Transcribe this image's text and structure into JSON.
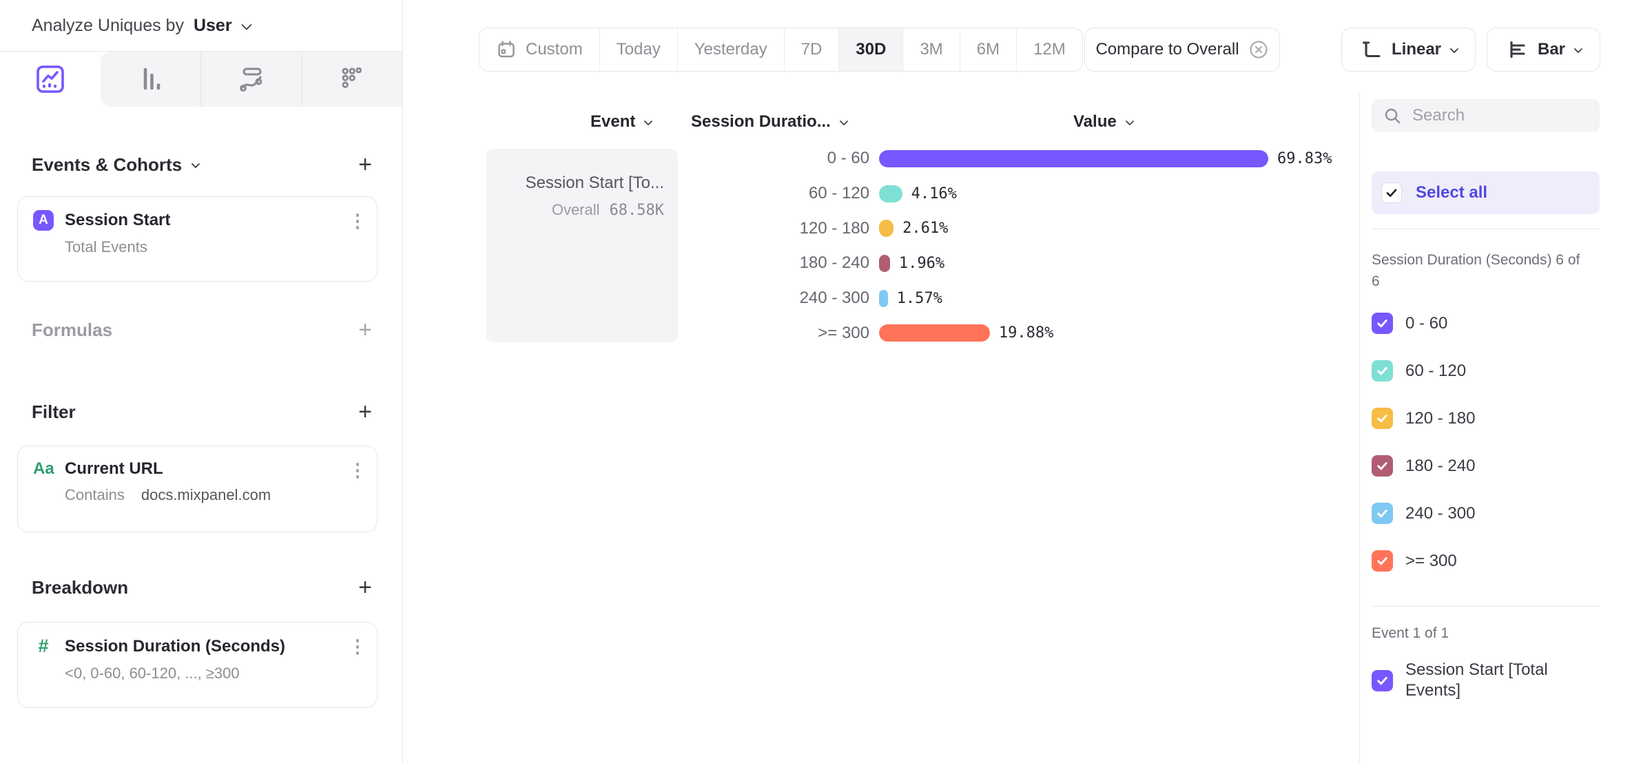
{
  "header": {
    "title_label": "Analyze Uniques by",
    "title_value": "User"
  },
  "chart_tabs": [
    {
      "name": "insights",
      "active": true
    },
    {
      "name": "bar-chart",
      "active": false
    },
    {
      "name": "flows",
      "active": false
    },
    {
      "name": "retention",
      "active": false
    }
  ],
  "builder": {
    "events_section": {
      "title": "Events & Cohorts",
      "card": {
        "badge": "A",
        "title": "Session Start",
        "subtitle": "Total Events"
      }
    },
    "formulas_section": {
      "title": "Formulas"
    },
    "filter_section": {
      "title": "Filter",
      "card": {
        "icon": "Aa",
        "title": "Current URL",
        "operator": "Contains",
        "value": "docs.mixpanel.com"
      }
    },
    "breakdown_section": {
      "title": "Breakdown",
      "card": {
        "icon": "#",
        "title": "Session Duration (Seconds)",
        "subtitle": "<0, 0-60, 60-120, ..., ≥300"
      }
    }
  },
  "toolbar": {
    "date_ranges": [
      "Custom",
      "Today",
      "Yesterday",
      "7D",
      "30D",
      "3M",
      "6M",
      "12M"
    ],
    "active_range": "30D",
    "compare_label": "Compare to Overall",
    "scale_label": "Linear",
    "chart_type_label": "Bar"
  },
  "table": {
    "columns": [
      "Event",
      "Session Duratio...",
      "Value"
    ]
  },
  "series_card": {
    "title": "Session Start [To...",
    "overall_label": "Overall",
    "overall_value": "68.58K"
  },
  "chart_data": {
    "type": "bar",
    "orientation": "horizontal",
    "series_name": "Session Start [Total Events]",
    "overall_label": "Overall",
    "overall_value": "68.58K",
    "categories": [
      "0 - 60",
      "60 - 120",
      "120 - 180",
      "180 - 240",
      "240 - 300",
      ">= 300"
    ],
    "values": [
      69.83,
      4.16,
      2.61,
      1.96,
      1.57,
      19.88
    ],
    "value_labels": [
      "69.83%",
      "4.16%",
      "2.61%",
      "1.96%",
      "1.57%",
      "19.88%"
    ],
    "colors": [
      "#7857FF",
      "#7EE0D4",
      "#F6BC45",
      "#B05D73",
      "#7EC9F4",
      "#FF7459"
    ],
    "unit": "%",
    "xlabel": "Value",
    "legend_position": "right-panel"
  },
  "sidebar": {
    "search_placeholder": "Search",
    "select_all_label": "Select all",
    "group_label": "Session Duration (Seconds) 6 of 6",
    "items": [
      {
        "label": "0 - 60",
        "color": "#7857FF",
        "checked": true
      },
      {
        "label": "60 - 120",
        "color": "#7EE0D4",
        "checked": true
      },
      {
        "label": "120 - 180",
        "color": "#F6BC45",
        "checked": true
      },
      {
        "label": "180 - 240",
        "color": "#B05D73",
        "checked": true
      },
      {
        "label": "240 - 300",
        "color": "#7EC9F4",
        "checked": true
      },
      {
        "label": ">= 300",
        "color": "#FF7459",
        "checked": true
      }
    ],
    "event_group_label": "Event 1 of 1",
    "event_items": [
      {
        "label": "Session Start [Total Events]",
        "color": "#7857FF",
        "checked": true
      }
    ]
  },
  "colors": {
    "accent": "#7857FF",
    "select_all_bg": "#EFEDFC",
    "select_all_text": "#5348E0",
    "panel_gray": "#F4F4F6",
    "divider": "#E8E8EB",
    "green_property": "#2E9E6E"
  }
}
